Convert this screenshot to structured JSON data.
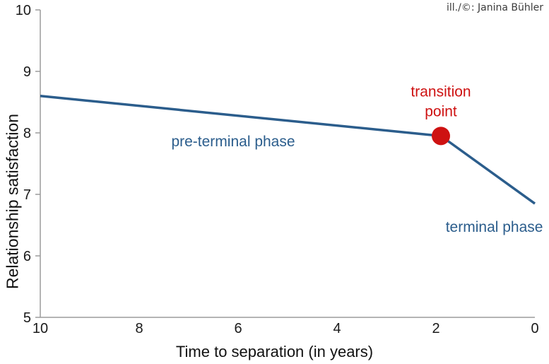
{
  "credit": "ill./©: Janina Bühler",
  "chart_data": {
    "type": "line",
    "title": "",
    "xlabel": "Time to separation (in years)",
    "ylabel": "Relationship satisfaction",
    "x_axis": {
      "min": 10,
      "max": 0,
      "reversed": true,
      "ticks": [
        10,
        8,
        6,
        4,
        2,
        0
      ]
    },
    "y_axis": {
      "min": 5,
      "max": 10,
      "ticks": [
        5,
        6,
        7,
        8,
        9,
        10
      ]
    },
    "grid": false,
    "legend": false,
    "axis_color": "#9b9b9b",
    "tick_label_color": "#1a1a1a",
    "series": [
      {
        "name": "relationship satisfaction trajectory",
        "color": "#2b5d8c",
        "line_width": 3.5,
        "points": [
          {
            "x": 10,
            "y": 8.6
          },
          {
            "x": 1.9,
            "y": 7.95
          },
          {
            "x": 0,
            "y": 6.85
          }
        ]
      }
    ],
    "marker": {
      "x": 1.9,
      "y": 7.95,
      "color": "#ce1212",
      "radius": 13
    },
    "annotations": [
      {
        "id": "pre-terminal-phase-label",
        "text": "pre-terminal phase",
        "x": 6.1,
        "y": 7.85,
        "color": "#2b5d8c",
        "multiline": false
      },
      {
        "id": "transition-point-label",
        "text": "transition point",
        "x": 1.9,
        "y": 8.5,
        "color": "#ce1212",
        "multiline": true
      },
      {
        "id": "terminal-phase-label",
        "text": "terminal phase",
        "x": 0.82,
        "y": 6.46,
        "color": "#2b5d8c",
        "multiline": false
      }
    ]
  }
}
